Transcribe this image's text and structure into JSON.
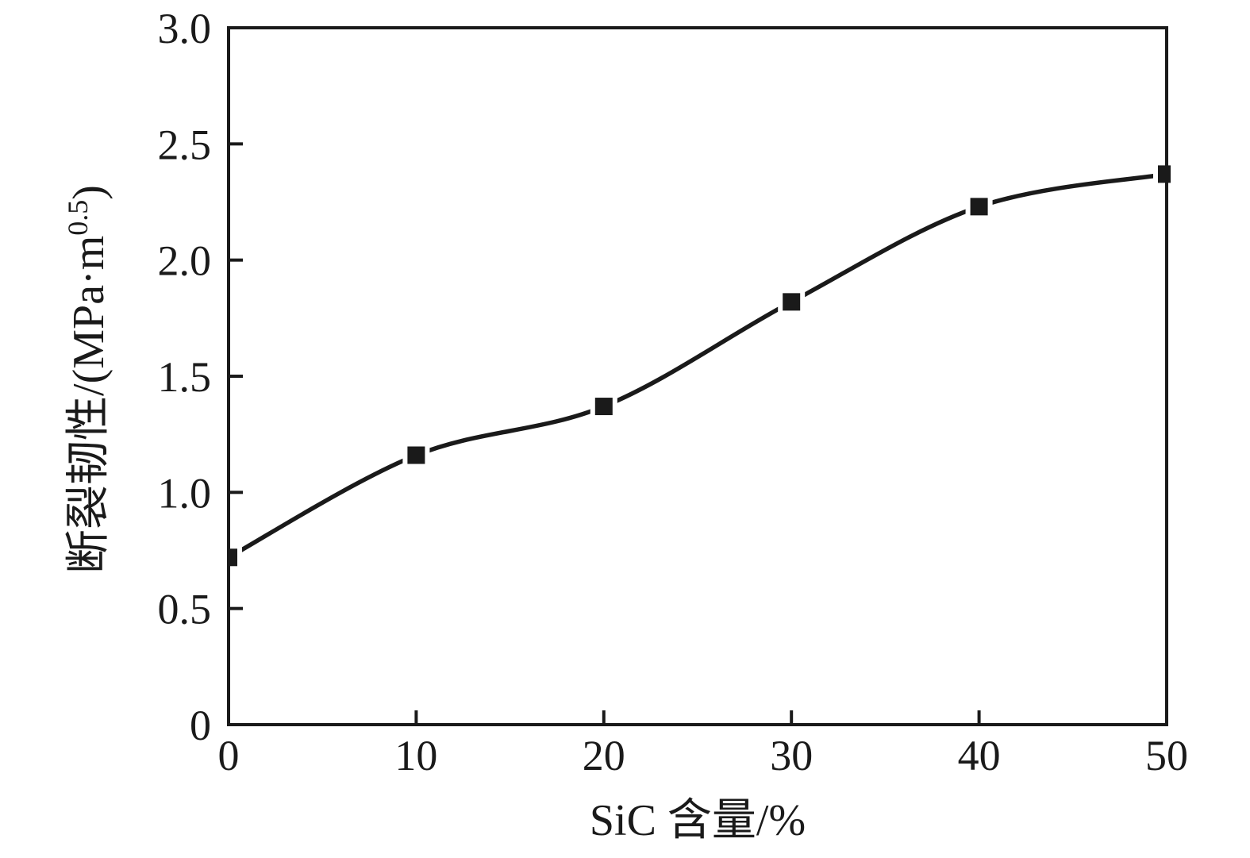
{
  "chart_data": {
    "type": "line",
    "title": "",
    "xlabel": "SiC 含量/%",
    "ylabel": {
      "prefix": "断裂韧性/(MPa·m",
      "superscript": "0.5",
      "suffix": ")"
    },
    "x": [
      0,
      10,
      20,
      30,
      40,
      50
    ],
    "series": [
      {
        "name": "断裂韧性",
        "values": [
          0.72,
          1.16,
          1.37,
          1.82,
          2.23,
          2.37
        ],
        "marker": "filled-square",
        "line_style": "smooth"
      }
    ],
    "xlim": [
      0,
      50
    ],
    "ylim": [
      0,
      3.0
    ],
    "xticks": {
      "values": [
        0,
        10,
        20,
        30,
        40,
        50
      ],
      "labels": [
        "0",
        "10",
        "20",
        "30",
        "40",
        "50"
      ]
    },
    "yticks": {
      "values": [
        0,
        0.5,
        1.0,
        1.5,
        2.0,
        2.5,
        3.0
      ],
      "labels": [
        "0",
        "0.5",
        "1.0",
        "1.5",
        "2.0",
        "2.5",
        "3.0"
      ]
    },
    "grid": false,
    "legend": "none",
    "frame": "full-box",
    "tick_direction": "in",
    "colors": {
      "line": "#1a1a1a",
      "marker": "#1a1a1a",
      "axis": "#1a1a1a",
      "text": "#1a1a1a",
      "background": "#ffffff"
    }
  }
}
